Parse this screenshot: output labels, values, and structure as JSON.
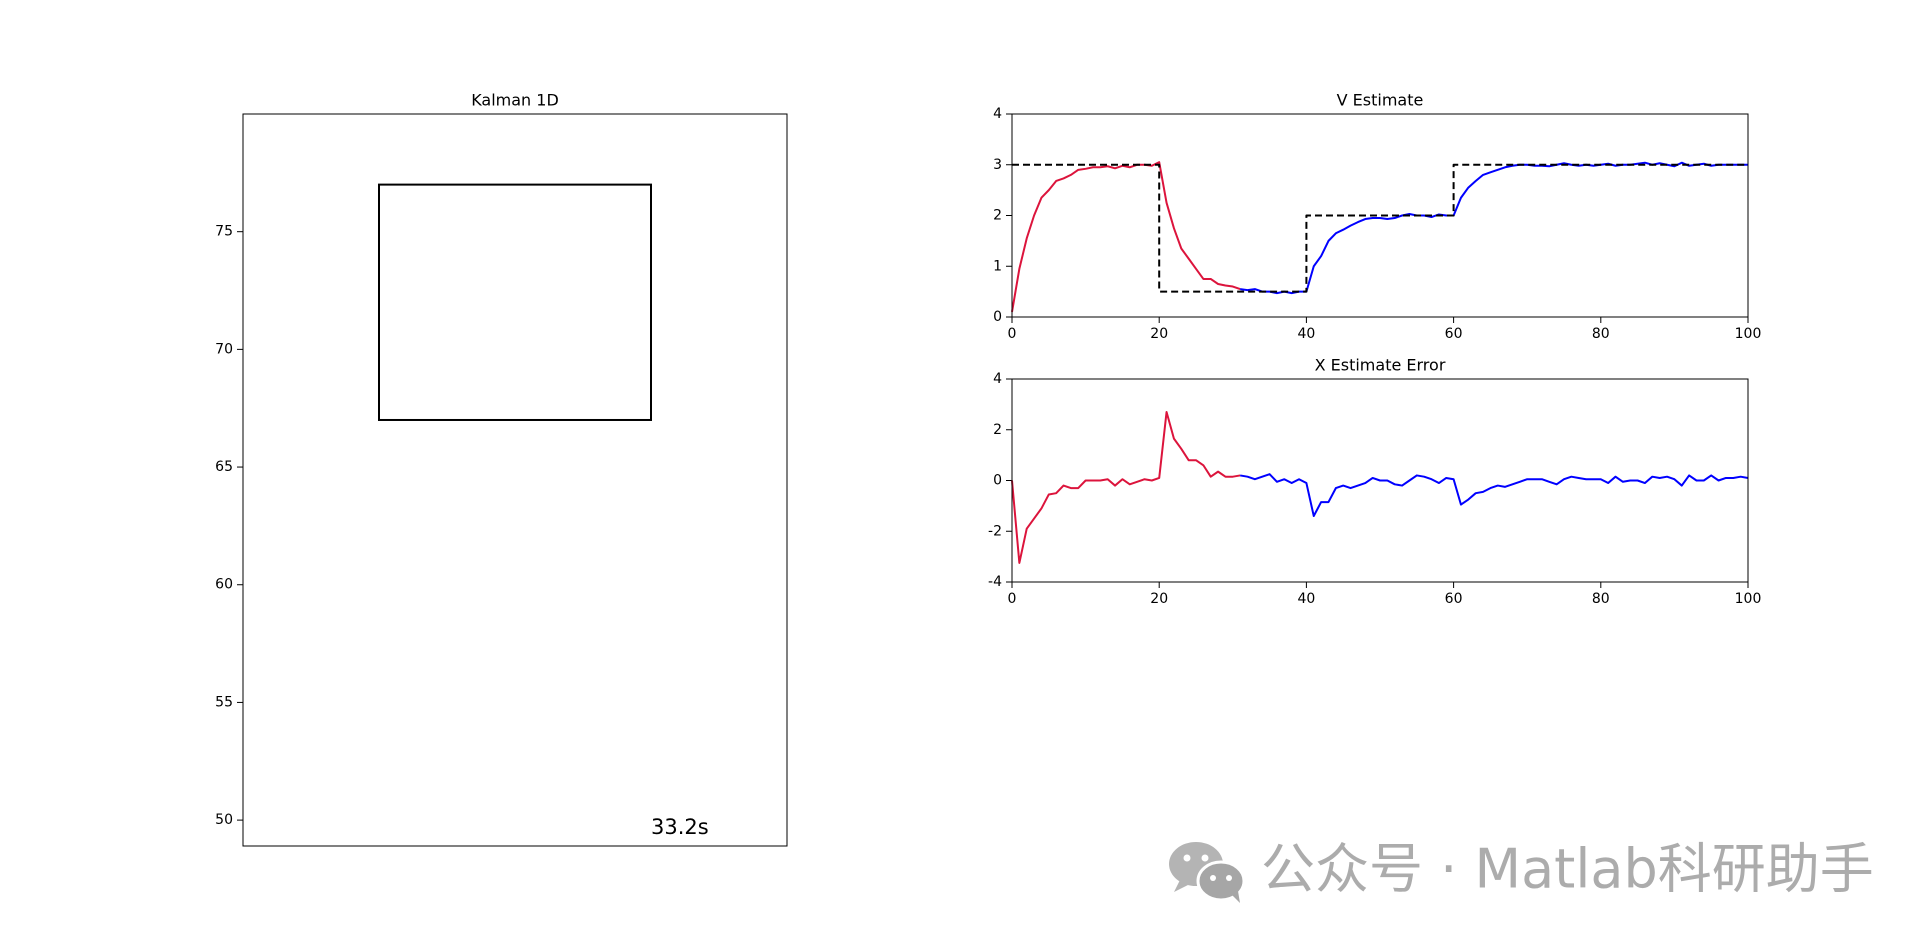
{
  "chart_data": [
    {
      "type": "box",
      "title": "Kalman 1D",
      "xlim": [
        -1,
        1
      ],
      "ylim": [
        48.9,
        80
      ],
      "yticks": [
        50,
        55,
        60,
        65,
        70,
        75
      ],
      "rect": {
        "x": [
          -0.5,
          0.5
        ],
        "y": [
          67,
          77
        ]
      },
      "color": "#000000",
      "time_label": "33.2s"
    },
    {
      "type": "line",
      "title": "V Estimate",
      "xlim": [
        0,
        100
      ],
      "ylim": [
        0,
        4
      ],
      "xticks": [
        0,
        20,
        40,
        60,
        80,
        100
      ],
      "yticks": [
        0,
        1,
        2,
        3,
        4
      ],
      "series": [
        {
          "color": "#dc143c",
          "linestyle": "solid",
          "x": [
            0,
            1,
            2,
            3,
            4,
            5,
            6,
            7,
            8,
            9,
            10,
            11,
            12,
            13,
            14,
            15,
            16,
            17,
            18,
            19,
            20,
            21,
            22,
            23,
            24,
            25,
            26,
            27,
            28,
            29,
            30,
            31
          ],
          "values": [
            0.1,
            0.95,
            1.55,
            2.0,
            2.35,
            2.5,
            2.68,
            2.73,
            2.8,
            2.9,
            2.92,
            2.95,
            2.95,
            2.97,
            2.93,
            2.98,
            2.95,
            3.0,
            3.0,
            2.98,
            3.05,
            2.25,
            1.75,
            1.35,
            1.15,
            0.95,
            0.75,
            0.75,
            0.65,
            0.62,
            0.6,
            0.55
          ]
        },
        {
          "color": "#0000ff",
          "linestyle": "solid",
          "x": [
            31,
            32,
            33,
            34,
            35,
            36,
            37,
            38,
            39,
            40,
            41,
            42,
            43,
            44,
            45,
            46,
            47,
            48,
            49,
            50,
            51,
            52,
            53,
            54,
            55,
            56,
            57,
            58,
            59,
            60,
            61,
            62,
            63,
            64,
            65,
            66,
            67,
            68,
            69,
            70,
            71,
            72,
            73,
            74,
            75,
            76,
            77,
            78,
            79,
            80,
            81,
            82,
            83,
            84,
            85,
            86,
            87,
            88,
            89,
            90,
            91,
            92,
            93,
            94,
            95,
            96,
            97,
            98,
            99,
            100
          ],
          "values": [
            0.55,
            0.53,
            0.55,
            0.5,
            0.5,
            0.47,
            0.5,
            0.47,
            0.5,
            0.5,
            1.0,
            1.2,
            1.5,
            1.65,
            1.72,
            1.8,
            1.87,
            1.93,
            1.95,
            1.95,
            1.93,
            1.95,
            2.0,
            2.03,
            2.0,
            2.0,
            1.97,
            2.02,
            2.0,
            2.0,
            2.35,
            2.55,
            2.68,
            2.8,
            2.85,
            2.9,
            2.95,
            2.98,
            3.0,
            3.0,
            2.98,
            2.98,
            2.97,
            3.0,
            3.03,
            3.0,
            2.98,
            3.0,
            2.98,
            3.0,
            3.02,
            2.98,
            3.0,
            3.0,
            3.02,
            3.04,
            3.0,
            3.03,
            3.0,
            2.97,
            3.04,
            2.98,
            3.0,
            3.02,
            2.98,
            3.0,
            3.0,
            3.0,
            3.0,
            3.0
          ]
        },
        {
          "color": "#000000",
          "linestyle": "dashed",
          "x": [
            0,
            20,
            20,
            40,
            40,
            60,
            60,
            100
          ],
          "values": [
            3,
            3,
            0.5,
            0.5,
            2,
            2,
            3,
            3
          ]
        }
      ]
    },
    {
      "type": "line",
      "title": "X Estimate Error",
      "xlim": [
        0,
        100
      ],
      "ylim": [
        -4,
        4
      ],
      "xticks": [
        0,
        20,
        40,
        60,
        80,
        100
      ],
      "yticks": [
        -4,
        -2,
        0,
        2,
        4
      ],
      "series": [
        {
          "color": "#dc143c",
          "linestyle": "solid",
          "x": [
            0,
            1,
            2,
            3,
            4,
            5,
            6,
            7,
            8,
            9,
            10,
            11,
            12,
            13,
            14,
            15,
            16,
            17,
            18,
            19,
            20,
            21,
            22,
            23,
            24,
            25,
            26,
            27,
            28,
            29,
            30,
            31
          ],
          "values": [
            0,
            -3.25,
            -1.9,
            -1.5,
            -1.1,
            -0.55,
            -0.5,
            -0.2,
            -0.3,
            -0.3,
            0.0,
            0.0,
            0.0,
            0.05,
            -0.2,
            0.05,
            -0.15,
            -0.05,
            0.05,
            0.0,
            0.1,
            2.7,
            1.65,
            1.25,
            0.8,
            0.8,
            0.6,
            0.15,
            0.35,
            0.15,
            0.15,
            0.2
          ]
        },
        {
          "color": "#0000ff",
          "linestyle": "solid",
          "x": [
            31,
            32,
            33,
            34,
            35,
            36,
            37,
            38,
            39,
            40,
            41,
            42,
            43,
            44,
            45,
            46,
            47,
            48,
            49,
            50,
            51,
            52,
            53,
            54,
            55,
            56,
            57,
            58,
            59,
            60,
            61,
            62,
            63,
            64,
            65,
            66,
            67,
            68,
            69,
            70,
            71,
            72,
            73,
            74,
            75,
            76,
            77,
            78,
            79,
            80,
            81,
            82,
            83,
            84,
            85,
            86,
            87,
            88,
            89,
            90,
            91,
            92,
            93,
            94,
            95,
            96,
            97,
            98,
            99,
            100
          ],
          "values": [
            0.2,
            0.15,
            0.05,
            0.15,
            0.25,
            -0.05,
            0.05,
            -0.1,
            0.05,
            -0.1,
            -1.4,
            -0.85,
            -0.85,
            -0.3,
            -0.2,
            -0.3,
            -0.2,
            -0.1,
            0.1,
            0.0,
            0.0,
            -0.15,
            -0.2,
            0.0,
            0.2,
            0.15,
            0.05,
            -0.1,
            0.1,
            0.05,
            -0.95,
            -0.75,
            -0.5,
            -0.45,
            -0.3,
            -0.2,
            -0.25,
            -0.15,
            -0.05,
            0.05,
            0.05,
            0.05,
            -0.05,
            -0.15,
            0.05,
            0.15,
            0.1,
            0.05,
            0.05,
            0.05,
            -0.1,
            0.15,
            -0.05,
            0.0,
            0.0,
            -0.1,
            0.15,
            0.1,
            0.15,
            0.05,
            -0.2,
            0.2,
            0.0,
            0.0,
            0.2,
            0.0,
            0.1,
            0.1,
            0.15,
            0.1
          ]
        }
      ]
    }
  ],
  "watermark": "公众号 · Matlab科研助手"
}
